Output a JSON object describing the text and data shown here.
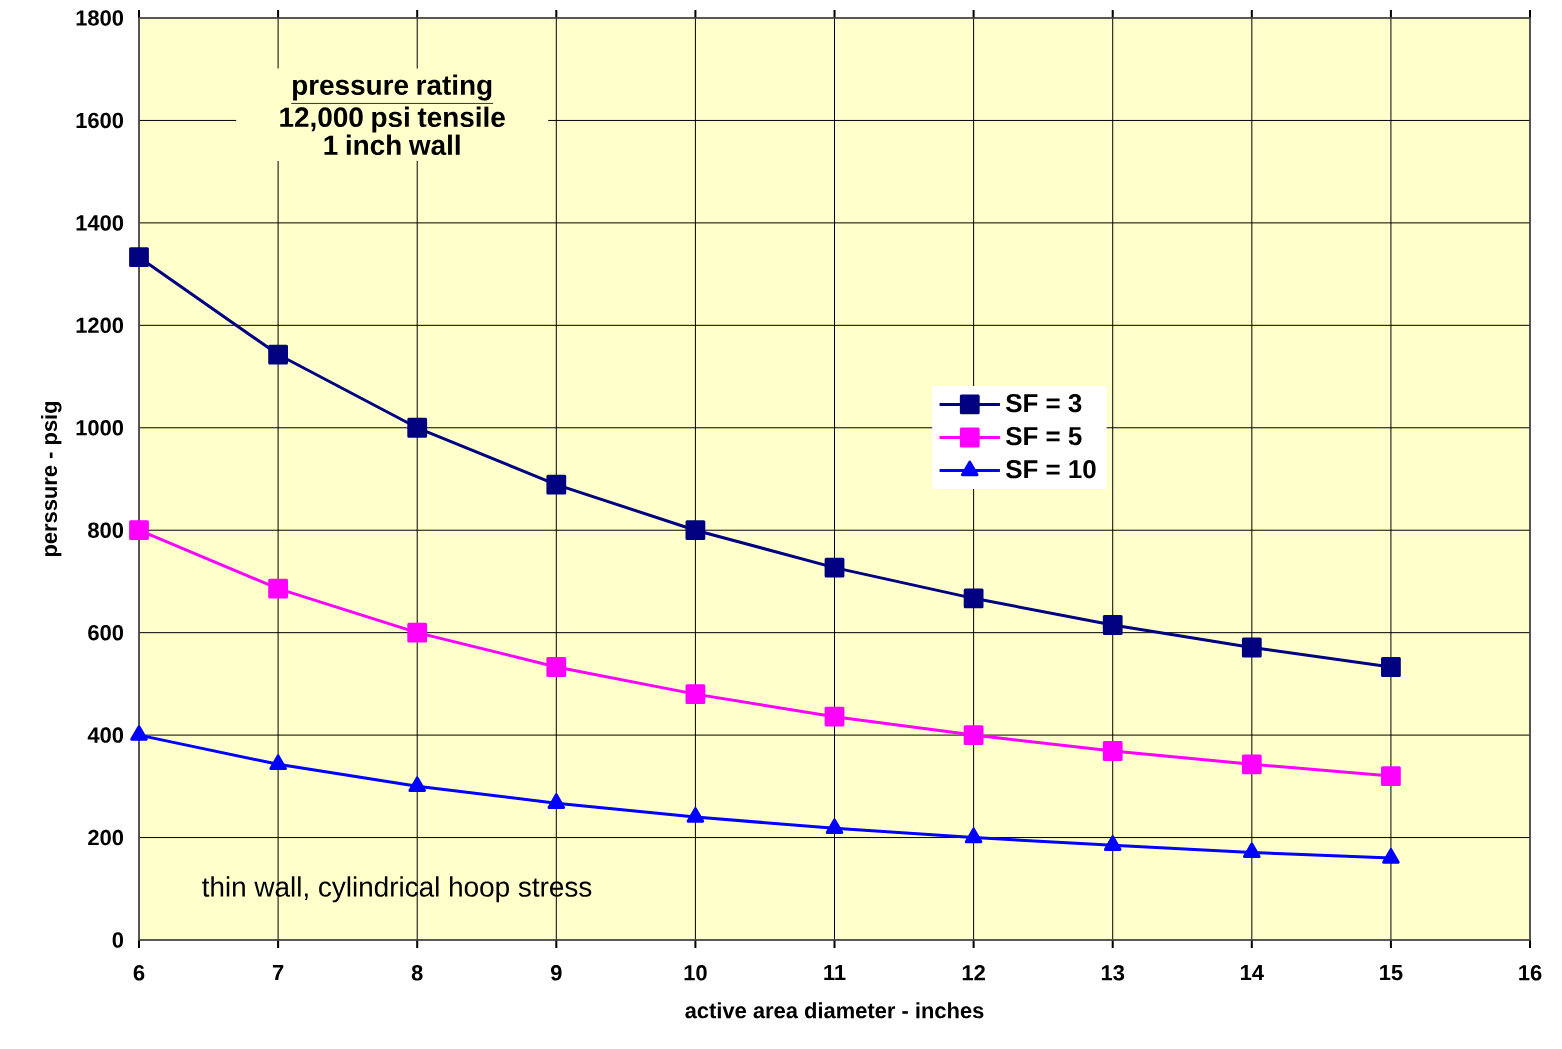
{
  "chart_data": {
    "type": "line",
    "title": "pressure rating",
    "subtitle": "12,000 psi tensile 1 inch wall",
    "xlabel": "active area diameter - inches",
    "ylabel": "perssure - psig",
    "annotations": [
      "thin wall, cylindrical hoop stress"
    ],
    "x": [
      6,
      7,
      8,
      9,
      10,
      11,
      12,
      13,
      14,
      15
    ],
    "series": [
      {
        "name": "SF = 3",
        "color": "#000080",
        "marker": "square",
        "values": [
          1333,
          1143,
          1000,
          889,
          800,
          727,
          667,
          615,
          571,
          533
        ]
      },
      {
        "name": "SF = 5",
        "color": "#ff00ff",
        "marker": "square",
        "values": [
          800,
          686,
          600,
          533,
          480,
          436,
          400,
          369,
          343,
          320
        ]
      },
      {
        "name": "SF = 10",
        "color": "#0000ff",
        "marker": "triangle",
        "values": [
          400,
          343,
          300,
          267,
          240,
          218,
          200,
          185,
          171,
          160
        ]
      }
    ],
    "xlim": [
      6,
      16
    ],
    "xticks": [
      6,
      7,
      8,
      9,
      10,
      11,
      12,
      13,
      14,
      15,
      16
    ],
    "ylim": [
      0,
      1800
    ],
    "yticks": [
      0,
      200,
      400,
      600,
      800,
      1000,
      1200,
      1400,
      1600,
      1800
    ],
    "grid": true,
    "legend": "right",
    "line_style": "solid"
  }
}
